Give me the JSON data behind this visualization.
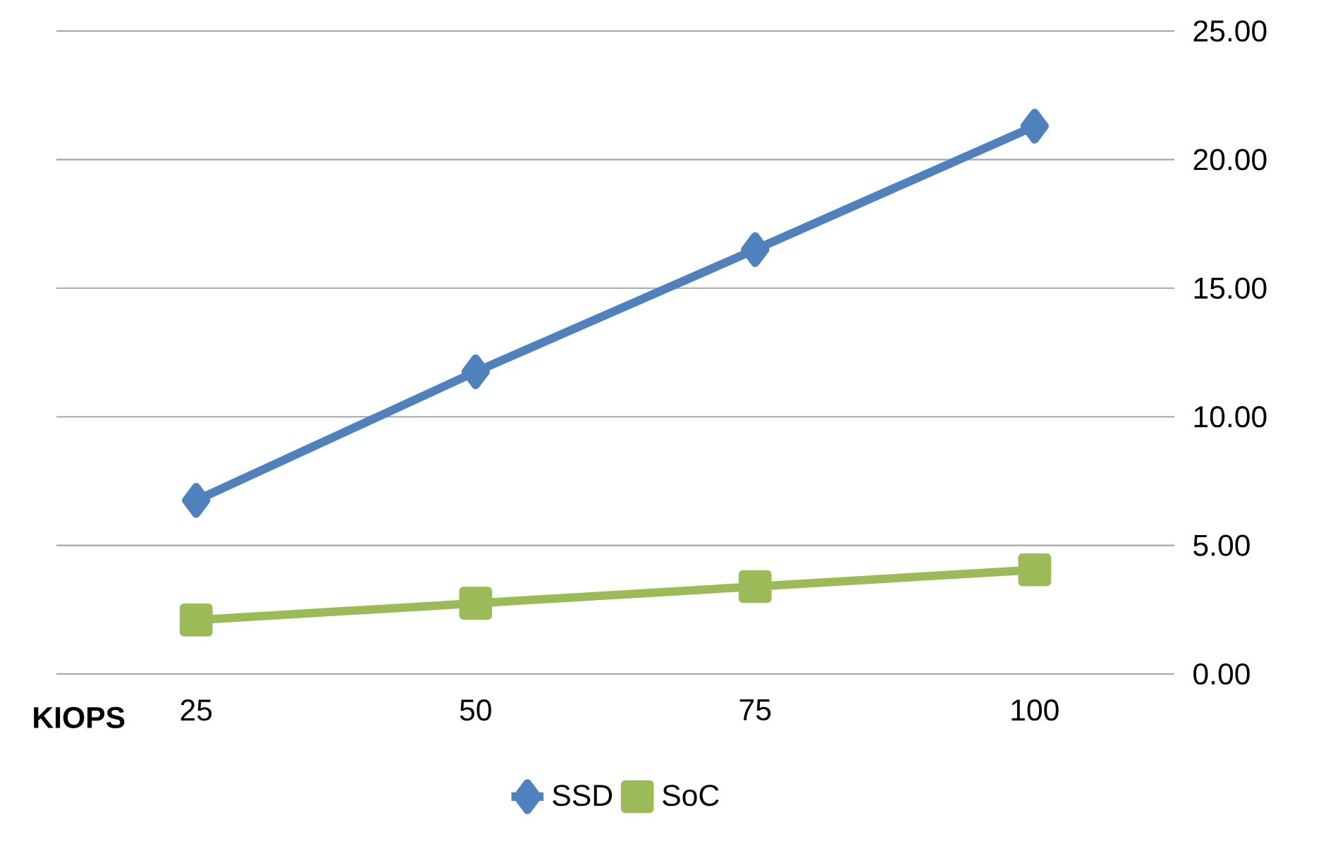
{
  "chart_data": {
    "type": "line",
    "xlabel": "**KIOPS**",
    "categories": [
      "25",
      "50",
      "75",
      "100"
    ],
    "series": [
      {
        "name": "SSD",
        "color": "#4f81bd",
        "marker": "diamond",
        "values": [
          6.75,
          11.75,
          16.5,
          21.3
        ]
      },
      {
        "name": "SoC",
        "color": "#9bbb59",
        "marker": "square",
        "values": [
          2.1,
          2.75,
          3.4,
          4.05
        ]
      }
    ],
    "ylim": [
      0,
      25
    ],
    "yticks": [
      {
        "value": 0,
        "label": "0.00"
      },
      {
        "value": 5,
        "label": "5.00"
      },
      {
        "value": 10,
        "label": "10.00"
      },
      {
        "value": 15,
        "label": "15.00"
      },
      {
        "value": 20,
        "label": "20.00"
      },
      {
        "value": 25,
        "label": "25.00"
      }
    ],
    "grid": "y",
    "legend": "bottom",
    "line_style": "solid"
  }
}
